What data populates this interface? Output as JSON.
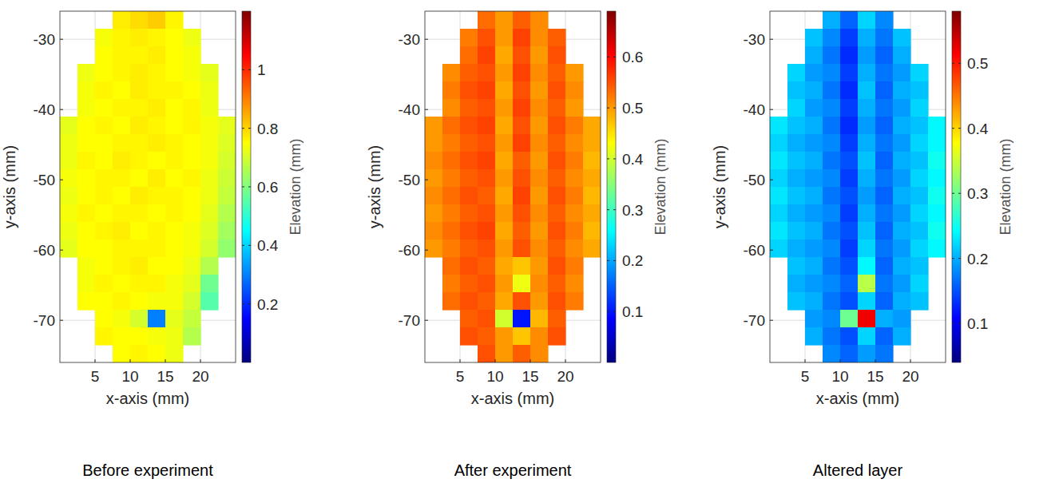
{
  "chart_data": [
    {
      "type": "heatmap",
      "title": "Before experiment",
      "x_label": "x-axis (mm)",
      "y_label": "y-axis (mm)",
      "xlim": [
        0,
        25
      ],
      "ylim": [
        -76,
        -26
      ],
      "xticks": [
        5,
        10,
        15,
        20
      ],
      "yticks": [
        -70,
        -60,
        -50,
        -40,
        -30
      ],
      "grid": true,
      "x": [
        1.25,
        3.75,
        6.25,
        8.75,
        11.25,
        13.75,
        16.25,
        18.75,
        21.25,
        23.75
      ],
      "y": [
        -27.25,
        -29.75,
        -32.25,
        -34.75,
        -37.25,
        -39.75,
        -42.25,
        -44.75,
        -47.25,
        -49.75,
        -52.25,
        -54.75,
        -57.25,
        -59.75,
        -62.25,
        -64.75,
        -67.25,
        -69.75,
        -72.25,
        -74.75
      ],
      "values": [
        [
          null,
          null,
          null,
          0.77,
          0.79,
          0.81,
          0.76,
          null,
          null,
          null
        ],
        [
          null,
          null,
          0.74,
          0.76,
          0.77,
          0.76,
          0.75,
          0.73,
          null,
          null
        ],
        [
          null,
          null,
          0.75,
          0.76,
          0.76,
          0.77,
          0.75,
          0.74,
          null,
          null
        ],
        [
          null,
          0.73,
          0.75,
          0.76,
          0.77,
          0.76,
          0.75,
          0.74,
          0.72,
          null
        ],
        [
          null,
          0.74,
          0.76,
          0.75,
          0.77,
          0.76,
          0.76,
          0.75,
          0.73,
          null
        ],
        [
          null,
          0.74,
          0.75,
          0.76,
          0.76,
          0.77,
          0.75,
          0.76,
          0.73,
          null
        ],
        [
          0.72,
          0.75,
          0.76,
          0.75,
          0.77,
          0.76,
          0.75,
          0.76,
          0.74,
          0.72
        ],
        [
          0.73,
          0.75,
          0.75,
          0.76,
          0.76,
          0.77,
          0.76,
          0.75,
          0.74,
          0.71
        ],
        [
          0.73,
          0.76,
          0.75,
          0.77,
          0.76,
          0.75,
          0.76,
          0.75,
          0.74,
          0.7
        ],
        [
          0.74,
          0.75,
          0.76,
          0.76,
          0.75,
          0.77,
          0.75,
          0.76,
          0.73,
          0.69
        ],
        [
          0.73,
          0.75,
          0.76,
          0.75,
          0.77,
          0.76,
          0.76,
          0.75,
          0.73,
          0.68
        ],
        [
          0.74,
          0.76,
          0.75,
          0.76,
          0.76,
          0.75,
          0.76,
          0.75,
          0.72,
          0.66
        ],
        [
          0.73,
          0.75,
          0.76,
          0.77,
          0.75,
          0.76,
          0.75,
          0.74,
          0.71,
          0.64
        ],
        [
          0.72,
          0.75,
          0.75,
          0.76,
          0.76,
          0.76,
          0.75,
          0.74,
          0.7,
          0.62
        ],
        [
          null,
          0.74,
          0.75,
          0.76,
          0.77,
          0.75,
          0.75,
          0.73,
          0.66,
          null
        ],
        [
          null,
          0.74,
          0.76,
          0.75,
          0.76,
          0.76,
          0.74,
          0.72,
          0.58,
          null
        ],
        [
          null,
          0.75,
          0.75,
          0.76,
          0.75,
          0.74,
          0.74,
          0.7,
          0.55,
          null
        ],
        [
          null,
          null,
          0.75,
          0.74,
          0.7,
          0.3,
          0.72,
          0.68,
          null,
          null
        ],
        [
          null,
          null,
          0.76,
          0.75,
          0.75,
          0.74,
          0.73,
          0.66,
          null,
          null
        ],
        [
          null,
          null,
          null,
          0.75,
          0.76,
          0.75,
          0.73,
          null,
          null,
          null
        ]
      ],
      "colorbar": {
        "label": "Elevation (mm)",
        "range": [
          0,
          1.2
        ],
        "ticks": [
          0.2,
          0.4,
          0.6,
          0.8,
          1
        ]
      }
    },
    {
      "type": "heatmap",
      "title": "After experiment",
      "x_label": "x-axis (mm)",
      "y_label": "y-axis (mm)",
      "xlim": [
        0,
        25
      ],
      "ylim": [
        -76,
        -26
      ],
      "xticks": [
        5,
        10,
        15,
        20
      ],
      "yticks": [
        -70,
        -60,
        -50,
        -40,
        -30
      ],
      "grid": true,
      "x": [
        1.25,
        3.75,
        6.25,
        8.75,
        11.25,
        13.75,
        16.25,
        18.75,
        21.25,
        23.75
      ],
      "y": [
        -27.25,
        -29.75,
        -32.25,
        -34.75,
        -37.25,
        -39.75,
        -42.25,
        -44.75,
        -47.25,
        -49.75,
        -52.25,
        -54.75,
        -57.25,
        -59.75,
        -62.25,
        -64.75,
        -67.25,
        -69.75,
        -72.25,
        -74.75
      ],
      "values": [
        [
          null,
          null,
          null,
          0.53,
          0.5,
          0.54,
          0.51,
          null,
          null,
          null
        ],
        [
          null,
          null,
          0.52,
          0.55,
          0.5,
          0.56,
          0.51,
          0.54,
          null,
          null
        ],
        [
          null,
          null,
          0.53,
          0.56,
          0.49,
          0.55,
          0.5,
          0.55,
          null,
          null
        ],
        [
          null,
          0.51,
          0.54,
          0.55,
          0.5,
          0.56,
          0.51,
          0.54,
          0.5,
          null
        ],
        [
          null,
          0.52,
          0.55,
          0.56,
          0.49,
          0.55,
          0.5,
          0.55,
          0.51,
          null
        ],
        [
          null,
          0.51,
          0.54,
          0.55,
          0.5,
          0.56,
          0.51,
          0.54,
          0.5,
          null
        ],
        [
          0.5,
          0.53,
          0.55,
          0.56,
          0.49,
          0.55,
          0.5,
          0.55,
          0.52,
          0.49
        ],
        [
          0.5,
          0.52,
          0.54,
          0.55,
          0.5,
          0.56,
          0.51,
          0.54,
          0.51,
          0.49
        ],
        [
          0.51,
          0.53,
          0.55,
          0.56,
          0.49,
          0.54,
          0.5,
          0.55,
          0.52,
          0.48
        ],
        [
          0.5,
          0.52,
          0.54,
          0.55,
          0.5,
          0.55,
          0.51,
          0.54,
          0.51,
          0.49
        ],
        [
          0.51,
          0.53,
          0.55,
          0.54,
          0.49,
          0.56,
          0.5,
          0.55,
          0.52,
          0.48
        ],
        [
          0.5,
          0.52,
          0.54,
          0.55,
          0.5,
          0.55,
          0.51,
          0.54,
          0.51,
          0.49
        ],
        [
          0.51,
          0.53,
          0.55,
          0.56,
          0.49,
          0.54,
          0.5,
          0.55,
          0.52,
          0.48
        ],
        [
          0.5,
          0.52,
          0.54,
          0.55,
          0.5,
          0.55,
          0.51,
          0.54,
          0.51,
          0.49
        ],
        [
          null,
          0.53,
          0.55,
          0.54,
          0.49,
          0.47,
          0.5,
          0.55,
          0.52,
          null
        ],
        [
          null,
          0.52,
          0.54,
          0.55,
          0.5,
          0.42,
          0.51,
          0.54,
          0.51,
          null
        ],
        [
          null,
          0.53,
          0.55,
          0.54,
          0.49,
          0.55,
          0.5,
          0.55,
          0.52,
          null
        ],
        [
          null,
          null,
          0.54,
          0.55,
          0.4,
          0.1,
          0.48,
          0.54,
          null,
          null
        ],
        [
          null,
          null,
          0.55,
          0.54,
          0.5,
          0.47,
          0.51,
          0.55,
          null,
          null
        ],
        [
          null,
          null,
          null,
          0.55,
          0.5,
          0.54,
          0.51,
          null,
          null,
          null
        ]
      ],
      "colorbar": {
        "label": "Elevation (mm)",
        "range": [
          0,
          0.69
        ],
        "ticks": [
          0.1,
          0.2,
          0.3,
          0.4,
          0.5,
          0.6
        ]
      }
    },
    {
      "type": "heatmap",
      "title": "Altered layer",
      "x_label": "x-axis (mm)",
      "y_label": "y-axis (mm)",
      "xlim": [
        0,
        25
      ],
      "ylim": [
        -76,
        -26
      ],
      "xticks": [
        5,
        10,
        15,
        20
      ],
      "yticks": [
        -70,
        -60,
        -50,
        -40,
        -30
      ],
      "grid": true,
      "x": [
        1.25,
        3.75,
        6.25,
        8.75,
        11.25,
        13.75,
        16.25,
        18.75,
        21.25,
        23.75
      ],
      "y": [
        -27.25,
        -29.75,
        -32.25,
        -34.75,
        -37.25,
        -39.75,
        -42.25,
        -44.75,
        -47.25,
        -49.75,
        -52.25,
        -54.75,
        -57.25,
        -59.75,
        -62.25,
        -64.75,
        -67.25,
        -69.75,
        -72.25,
        -74.75
      ],
      "values": [
        [
          null,
          null,
          null,
          0.2,
          0.16,
          0.22,
          0.18,
          null,
          null,
          null
        ],
        [
          null,
          null,
          0.21,
          0.18,
          0.14,
          0.2,
          0.17,
          0.21,
          null,
          null
        ],
        [
          null,
          null,
          0.2,
          0.17,
          0.13,
          0.19,
          0.16,
          0.2,
          null,
          null
        ],
        [
          null,
          0.22,
          0.19,
          0.18,
          0.14,
          0.2,
          0.17,
          0.19,
          0.22,
          null
        ],
        [
          null,
          0.21,
          0.2,
          0.17,
          0.13,
          0.21,
          0.16,
          0.2,
          0.21,
          null
        ],
        [
          null,
          0.22,
          0.19,
          0.18,
          0.14,
          0.2,
          0.17,
          0.19,
          0.22,
          null
        ],
        [
          0.23,
          0.21,
          0.2,
          0.17,
          0.13,
          0.19,
          0.16,
          0.2,
          0.21,
          0.24
        ],
        [
          0.22,
          0.2,
          0.19,
          0.18,
          0.14,
          0.2,
          0.17,
          0.19,
          0.22,
          0.24
        ],
        [
          0.23,
          0.21,
          0.2,
          0.17,
          0.15,
          0.21,
          0.16,
          0.2,
          0.21,
          0.25
        ],
        [
          0.22,
          0.2,
          0.19,
          0.18,
          0.14,
          0.2,
          0.17,
          0.19,
          0.22,
          0.24
        ],
        [
          0.23,
          0.21,
          0.2,
          0.17,
          0.15,
          0.19,
          0.16,
          0.2,
          0.21,
          0.25
        ],
        [
          0.22,
          0.2,
          0.19,
          0.18,
          0.14,
          0.2,
          0.17,
          0.19,
          0.22,
          0.24
        ],
        [
          0.23,
          0.21,
          0.2,
          0.17,
          0.15,
          0.21,
          0.16,
          0.2,
          0.21,
          0.25
        ],
        [
          0.22,
          0.2,
          0.19,
          0.18,
          0.14,
          0.22,
          0.17,
          0.19,
          0.22,
          0.24
        ],
        [
          null,
          0.21,
          0.2,
          0.17,
          0.15,
          0.24,
          0.16,
          0.2,
          0.21,
          null
        ],
        [
          null,
          0.2,
          0.19,
          0.18,
          0.16,
          0.34,
          0.17,
          0.19,
          0.22,
          null
        ],
        [
          null,
          0.21,
          0.2,
          0.17,
          0.15,
          0.22,
          0.16,
          0.2,
          0.21,
          null
        ],
        [
          null,
          null,
          0.19,
          0.18,
          0.3,
          0.52,
          0.2,
          0.19,
          null,
          null
        ],
        [
          null,
          null,
          0.2,
          0.17,
          0.15,
          0.22,
          0.16,
          0.2,
          null,
          null
        ],
        [
          null,
          null,
          null,
          0.18,
          0.16,
          0.19,
          0.17,
          null,
          null,
          null
        ]
      ],
      "colorbar": {
        "label": "Elevation (mm)",
        "range": [
          0.04,
          0.58
        ],
        "ticks": [
          0.1,
          0.2,
          0.3,
          0.4,
          0.5
        ]
      }
    }
  ]
}
